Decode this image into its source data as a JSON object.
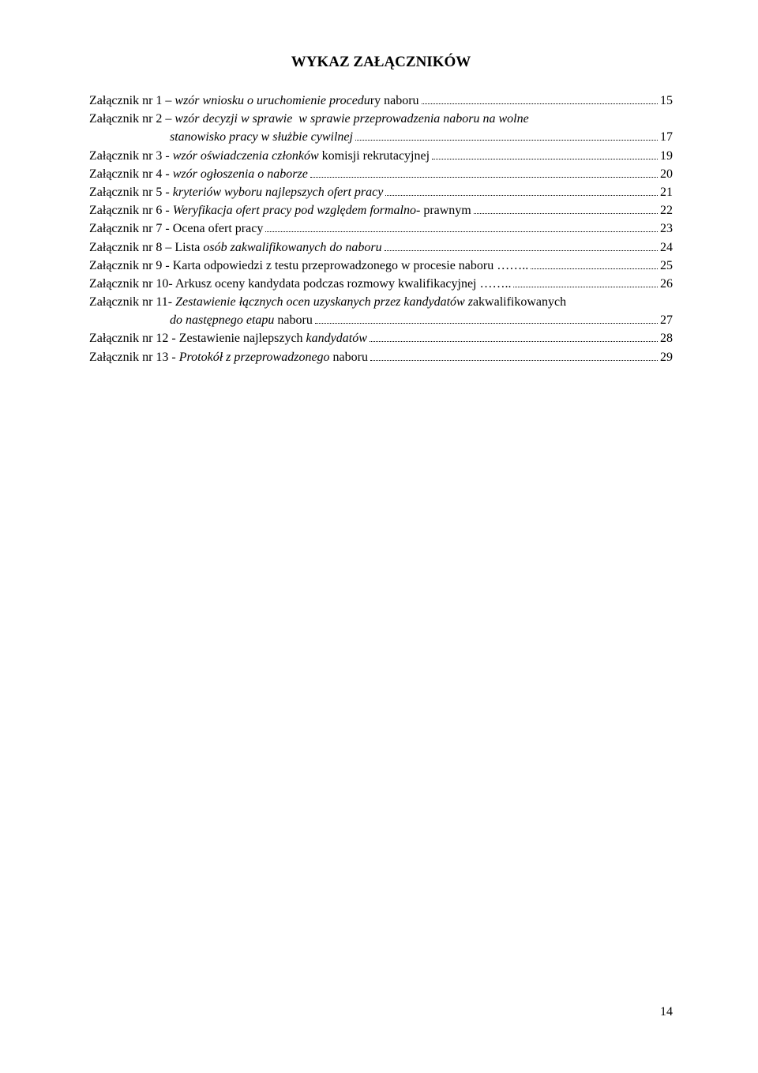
{
  "title": "WYKAZ ZAŁĄCZNIKÓW",
  "entries": [
    {
      "prefix": "Załącznik nr 1 – ",
      "italic": "wzór wniosku o uruchomienie procedu",
      "suffix": "ry naboru",
      "page": "15"
    },
    {
      "prefix": "Załącznik nr 2 – ",
      "italic": "wzór decyzji w sprawie  w sprawie przeprowadzenia naboru na wolne",
      "cont_italic": "stanowisko pracy w służbie cywilnej",
      "page": "17"
    },
    {
      "prefix": "Załącznik nr 3 - ",
      "italic": "wzór oświadczenia członków ",
      "suffix": "komisji rekrutacyjnej",
      "page": "19"
    },
    {
      "prefix": "Załącznik nr 4 - ",
      "italic": "wzór ogłoszenia o naborze",
      "page": "20"
    },
    {
      "prefix": "Załącznik nr 5 - ",
      "italic": "kryteriów wyboru najlepszych ofert pracy",
      "page": "21"
    },
    {
      "prefix": "Załącznik nr 6 - ",
      "italic": "Weryfikacja ofert pracy pod względem formalno",
      "suffix": "- prawnym",
      "page": "22"
    },
    {
      "prefix": "Załącznik nr 7 - ",
      "suffix": "Ocena ofert pracy",
      "page": "23"
    },
    {
      "prefix": "Załącznik nr 8 – ",
      "suffix": "Lista ",
      "italic_after": "osób zakwalifikowanych do naboru",
      "page": "24"
    },
    {
      "prefix": "Załącznik nr 9 - ",
      "suffix": "Karta odpowiedzi z testu przeprowadzonego w procesie naboru ……..",
      "page": "25"
    },
    {
      "prefix": "Załącznik nr 10- ",
      "suffix": "Arkusz oceny kandydata podczas rozmowy kwalifikacyjnej ……..",
      "page": "26"
    },
    {
      "prefix": "Załącznik nr 11- ",
      "italic": "Zestawienie łącznych ocen uzyskanych przez kandydatów z",
      "suffix": "akwalifikowanych",
      "cont_italic": "do następnego etapu ",
      "cont_suffix": "naboru",
      "page": "27"
    },
    {
      "prefix": "Załącznik nr 1",
      "suffix": "2 - Zestawienie najlepszych ",
      "italic_after": "kandydatów",
      "page": "28"
    },
    {
      "prefix": "Załącznik nr 1",
      "suffix": "3 - ",
      "italic_after": "Protokół z przeprowadzonego ",
      "suffix_after": "naboru",
      "page": "29"
    }
  ],
  "page_number": "14"
}
